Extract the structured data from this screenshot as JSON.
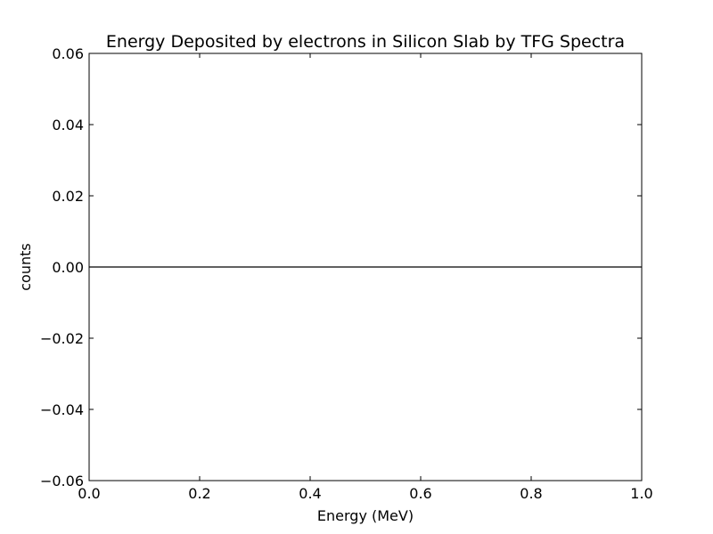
{
  "chart_data": {
    "type": "line",
    "title": "Energy Deposited by electrons in Silicon Slab by TFG Spectra",
    "xlabel": "Energy (MeV)",
    "ylabel": "counts",
    "xlim": [
      0.0,
      1.0
    ],
    "ylim": [
      -0.06,
      0.06
    ],
    "xticks": [
      0.0,
      0.2,
      0.4,
      0.6,
      0.8,
      1.0
    ],
    "xtick_labels": [
      "0.0",
      "0.2",
      "0.4",
      "0.6",
      "0.8",
      "1.0"
    ],
    "yticks": [
      -0.06,
      -0.04,
      -0.02,
      0.0,
      0.02,
      0.04,
      0.06
    ],
    "ytick_labels": [
      "−0.06",
      "−0.04",
      "−0.02",
      "0.00",
      "0.02",
      "0.04",
      "0.06"
    ],
    "grid": false,
    "series": [
      {
        "x": [
          0.0,
          1.0
        ],
        "y": [
          0.0,
          0.0
        ],
        "color": "#000000"
      }
    ]
  }
}
